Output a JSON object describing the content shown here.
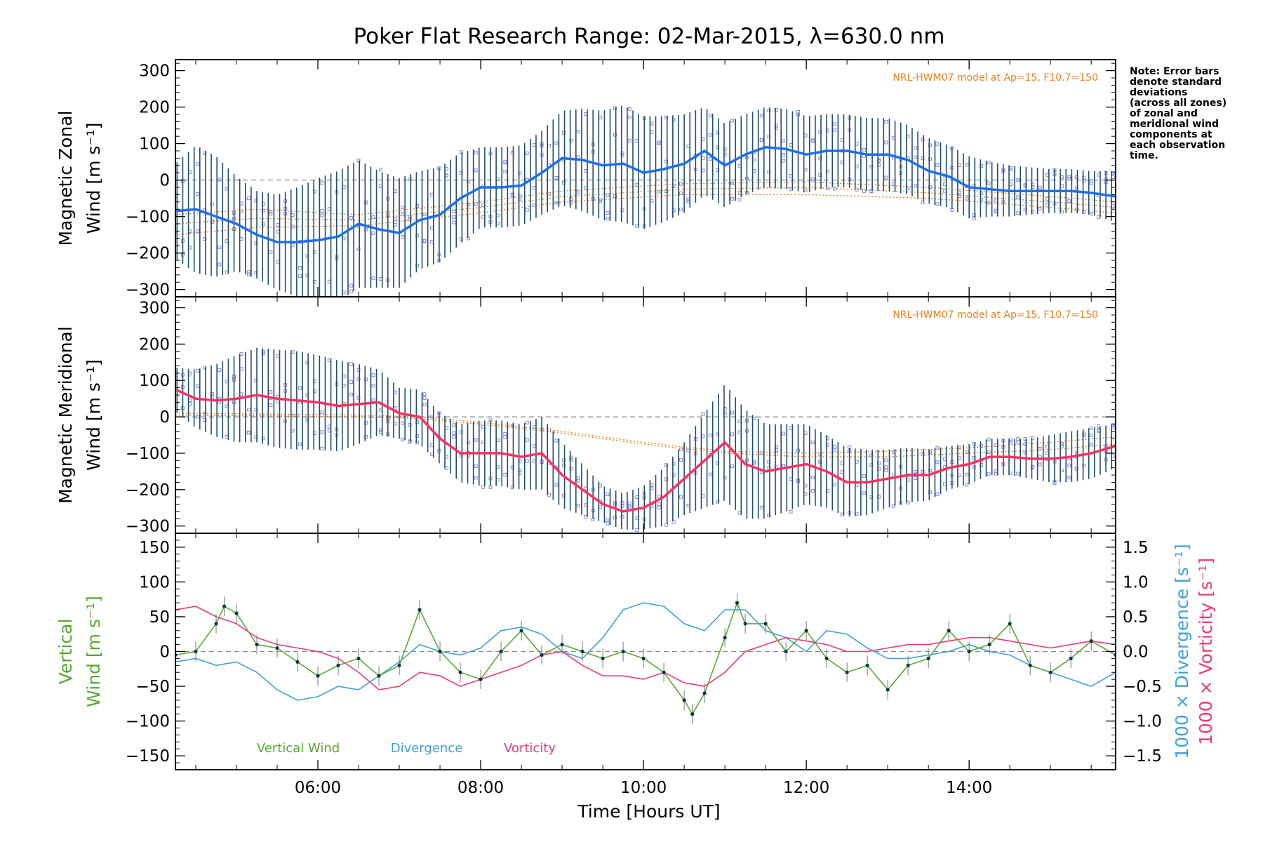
{
  "title": "Poker Flat Research Range: 02-Mar-2015, λ=630.0 nm",
  "note_lines": [
    "Note: Error bars",
    "denote standard",
    "deviations",
    "(across all zones)",
    "of zonal and",
    "meridional wind",
    "components at",
    "each observation",
    "time."
  ],
  "model_note": "NRL-HWM07 model at Ap=15, F10.7=150",
  "x_axis": {
    "label": "Time [Hours UT]",
    "range": [
      4.25,
      15.8
    ],
    "ticks": [
      6,
      8,
      10,
      12,
      14
    ],
    "tick_labels": [
      "06:00",
      "08:00",
      "10:00",
      "12:00",
      "14:00"
    ]
  },
  "colors": {
    "zonal_mean": "#1e6fe8",
    "meridional_mean": "#ff3060",
    "error_bar": "#1f4e6e",
    "model": "#f08020",
    "vertical": "#5aa832",
    "vertical_points": "#0a3a48",
    "divergence": "#3ea2d6",
    "vorticity": "#f03878",
    "zone_points": "#8a8ad8",
    "zero_line": "#888888"
  },
  "chart_data": [
    {
      "type": "line",
      "panel": "zonal",
      "ylabel_lines": [
        "Magnetic Zonal",
        "Wind [m s⁻¹]"
      ],
      "ylim": [
        -320,
        330
      ],
      "yticks": [
        -300,
        -200,
        -100,
        0,
        100,
        200,
        300
      ],
      "ytick_labels": [
        "−300",
        "−200",
        "−100",
        "0",
        "100",
        "200",
        "300"
      ],
      "grid": false,
      "series": [
        {
          "role": "mean",
          "x": [
            4.25,
            4.5,
            4.75,
            5.0,
            5.25,
            5.5,
            5.75,
            6.0,
            6.25,
            6.5,
            6.75,
            7.0,
            7.25,
            7.5,
            7.75,
            8.0,
            8.25,
            8.5,
            8.75,
            9.0,
            9.25,
            9.5,
            9.75,
            10.0,
            10.25,
            10.5,
            10.75,
            11.0,
            11.25,
            11.5,
            11.75,
            12.0,
            12.25,
            12.5,
            12.75,
            13.0,
            13.25,
            13.5,
            13.75,
            14.0,
            14.25,
            14.5,
            14.75,
            15.0,
            15.25,
            15.5,
            15.8
          ],
          "y": [
            -85,
            -80,
            -100,
            -120,
            -150,
            -170,
            -170,
            -165,
            -155,
            -120,
            -135,
            -145,
            -110,
            -95,
            -50,
            -20,
            -20,
            -15,
            20,
            60,
            55,
            40,
            45,
            20,
            30,
            45,
            80,
            40,
            70,
            90,
            85,
            70,
            80,
            80,
            70,
            70,
            55,
            25,
            10,
            -20,
            -25,
            -30,
            -30,
            -30,
            -30,
            -35,
            -45
          ]
        }
      ],
      "error_bars": {
        "x": [
          4.25,
          4.5,
          4.75,
          5.0,
          5.25,
          5.5,
          5.75,
          6.0,
          6.25,
          6.5,
          6.75,
          7.0,
          7.25,
          7.5,
          7.75,
          8.0,
          8.25,
          8.5,
          8.75,
          9.0,
          9.25,
          9.5,
          9.75,
          10.0,
          10.25,
          10.5,
          10.75,
          11.0,
          11.25,
          11.5,
          11.75,
          12.0,
          12.25,
          12.5,
          12.75,
          13.0,
          13.25,
          13.5,
          13.75,
          14.0,
          14.25,
          14.5,
          14.75,
          15.0,
          15.25,
          15.5,
          15.8
        ],
        "sd": [
          130,
          175,
          165,
          130,
          120,
          130,
          150,
          170,
          180,
          175,
          160,
          150,
          135,
          130,
          125,
          110,
          110,
          110,
          115,
          130,
          140,
          150,
          160,
          155,
          145,
          135,
          120,
          115,
          110,
          110,
          110,
          105,
          100,
          100,
          100,
          100,
          95,
          90,
          85,
          85,
          75,
          70,
          65,
          60,
          60,
          60,
          70
        ]
      },
      "model_lines": [
        {
          "x": [
            4.25,
            5.25,
            6.5,
            8.0,
            9.0,
            10.5,
            12.0,
            13.5,
            15.0,
            15.8
          ],
          "y": [
            -95,
            -80,
            -95,
            -60,
            -30,
            -10,
            -5,
            -20,
            -45,
            -60
          ]
        },
        {
          "x": [
            4.25,
            5.25,
            6.5,
            8.0,
            9.0,
            10.5,
            12.0,
            13.5,
            15.0,
            15.8
          ],
          "y": [
            -120,
            -105,
            -110,
            -75,
            -45,
            -25,
            -20,
            -35,
            -60,
            -75
          ]
        },
        {
          "x": [
            4.25,
            5.25,
            6.5,
            8.0,
            9.0,
            10.5,
            12.0,
            13.5,
            15.0,
            15.8
          ],
          "y": [
            -150,
            -130,
            -125,
            -90,
            -60,
            -40,
            -40,
            -50,
            -75,
            -90
          ]
        }
      ]
    },
    {
      "type": "line",
      "panel": "meridional",
      "ylabel_lines": [
        "Magnetic Meridional",
        "Wind [m s⁻¹]"
      ],
      "ylim": [
        -320,
        330
      ],
      "yticks": [
        -300,
        -200,
        -100,
        0,
        100,
        200,
        300
      ],
      "ytick_labels": [
        "−300",
        "−200",
        "−100",
        "0",
        "100",
        "200",
        "300"
      ],
      "grid": false,
      "series": [
        {
          "role": "mean",
          "x": [
            4.25,
            4.5,
            4.75,
            5.0,
            5.25,
            5.5,
            5.75,
            6.0,
            6.25,
            6.5,
            6.75,
            7.0,
            7.25,
            7.5,
            7.75,
            8.0,
            8.25,
            8.5,
            8.75,
            9.0,
            9.25,
            9.5,
            9.75,
            10.0,
            10.25,
            10.5,
            10.75,
            11.0,
            11.25,
            11.5,
            11.75,
            12.0,
            12.25,
            12.5,
            12.75,
            13.0,
            13.25,
            13.5,
            13.75,
            14.0,
            14.25,
            14.5,
            14.75,
            15.0,
            15.25,
            15.5,
            15.8
          ],
          "y": [
            75,
            50,
            45,
            50,
            60,
            50,
            45,
            40,
            30,
            35,
            40,
            10,
            0,
            -60,
            -100,
            -100,
            -100,
            -110,
            -100,
            -160,
            -200,
            -240,
            -260,
            -250,
            -220,
            -170,
            -120,
            -70,
            -130,
            -150,
            -140,
            -130,
            -150,
            -180,
            -180,
            -170,
            -160,
            -160,
            -140,
            -130,
            -110,
            -110,
            -115,
            -115,
            -110,
            -100,
            -80
          ]
        }
      ],
      "error_bars": {
        "x": [
          4.25,
          4.5,
          4.75,
          5.0,
          5.25,
          5.5,
          5.75,
          6.0,
          6.25,
          6.5,
          6.75,
          7.0,
          7.25,
          7.5,
          7.75,
          8.0,
          8.25,
          8.5,
          8.75,
          9.0,
          9.25,
          9.5,
          9.75,
          10.0,
          10.25,
          10.5,
          10.75,
          11.0,
          11.25,
          11.5,
          11.75,
          12.0,
          12.25,
          12.5,
          12.75,
          13.0,
          13.25,
          13.5,
          13.75,
          14.0,
          14.25,
          14.5,
          14.75,
          15.0,
          15.25,
          15.5,
          15.8
        ],
        "sd": [
          60,
          80,
          100,
          120,
          130,
          135,
          135,
          130,
          125,
          110,
          90,
          70,
          75,
          70,
          80,
          90,
          90,
          90,
          100,
          90,
          70,
          50,
          50,
          60,
          80,
          100,
          130,
          160,
          150,
          130,
          120,
          110,
          100,
          95,
          90,
          80,
          75,
          70,
          60,
          55,
          50,
          50,
          55,
          65,
          70,
          70,
          60
        ]
      },
      "model_lines": [
        {
          "x": [
            4.25,
            6.5,
            7.25,
            8.0,
            9.0,
            10.0,
            11.0,
            12.0,
            13.0,
            14.0,
            15.0,
            15.8
          ],
          "y": [
            10,
            5,
            0,
            -15,
            -40,
            -70,
            -95,
            -100,
            -95,
            -85,
            -70,
            -55
          ]
        },
        {
          "x": [
            4.25,
            6.5,
            7.25,
            8.0,
            9.0,
            10.0,
            11.0,
            12.0,
            13.0,
            14.0,
            15.0,
            15.8
          ],
          "y": [
            5,
            0,
            -5,
            -20,
            -45,
            -75,
            -100,
            -110,
            -110,
            -100,
            -90,
            -75
          ]
        }
      ]
    },
    {
      "type": "line",
      "panel": "vertical",
      "ylabel_lines": [
        "Vertical",
        "Wind [m s⁻¹]"
      ],
      "ylim": [
        -170,
        170
      ],
      "yticks": [
        -150,
        -100,
        -50,
        0,
        50,
        100,
        150
      ],
      "ytick_labels": [
        "−150",
        "−100",
        "−50",
        "0",
        "50",
        "100",
        "150"
      ],
      "y2label_divergence": "1000 × Divergence [s⁻¹]",
      "y2label_vorticity": "1000 × Vorticity [s⁻¹]",
      "y2lim": [
        -1.7,
        1.7
      ],
      "y2ticks": [
        -1.5,
        -1.0,
        -0.5,
        0.0,
        0.5,
        1.0,
        1.5
      ],
      "y2tick_labels": [
        "−1.5",
        "−1.0",
        "−0.5",
        "0.0",
        "0.5",
        "1.0",
        "1.5"
      ],
      "grid": false,
      "legend": {
        "placement": "bottom-left",
        "entries": [
          "Vertical Wind",
          "Divergence",
          "Vorticity"
        ]
      },
      "series": [
        {
          "name": "Vertical Wind",
          "axis": "left",
          "x": [
            4.25,
            4.5,
            4.75,
            4.85,
            5.0,
            5.25,
            5.5,
            5.75,
            6.0,
            6.25,
            6.5,
            6.75,
            7.0,
            7.25,
            7.5,
            7.75,
            8.0,
            8.25,
            8.5,
            8.75,
            9.0,
            9.25,
            9.5,
            9.75,
            10.0,
            10.25,
            10.5,
            10.6,
            10.75,
            11.0,
            11.15,
            11.25,
            11.5,
            11.75,
            12.0,
            12.25,
            12.5,
            12.75,
            13.0,
            13.25,
            13.5,
            13.75,
            14.0,
            14.25,
            14.5,
            14.75,
            15.0,
            15.25,
            15.5,
            15.8
          ],
          "y": [
            -5,
            0,
            40,
            65,
            55,
            10,
            5,
            -15,
            -35,
            -20,
            -10,
            -35,
            -20,
            60,
            0,
            -30,
            -40,
            0,
            30,
            -5,
            10,
            0,
            -10,
            0,
            -10,
            -30,
            -70,
            -90,
            -60,
            20,
            70,
            40,
            40,
            0,
            30,
            -10,
            -30,
            -20,
            -55,
            -20,
            -10,
            30,
            0,
            10,
            40,
            -20,
            -30,
            -10,
            15,
            -5
          ]
        },
        {
          "name": "Divergence",
          "axis": "right",
          "x": [
            4.25,
            4.5,
            4.75,
            5.0,
            5.25,
            5.5,
            5.75,
            6.0,
            6.25,
            6.5,
            6.75,
            7.0,
            7.25,
            7.5,
            7.75,
            8.0,
            8.25,
            8.5,
            8.75,
            9.0,
            9.25,
            9.5,
            9.75,
            10.0,
            10.25,
            10.5,
            10.75,
            11.0,
            11.25,
            11.5,
            11.75,
            12.0,
            12.25,
            12.5,
            12.75,
            13.0,
            13.25,
            13.5,
            13.75,
            14.0,
            14.25,
            14.5,
            14.75,
            15.0,
            15.25,
            15.5,
            15.8
          ],
          "y": [
            -0.15,
            -0.1,
            -0.2,
            -0.15,
            -0.3,
            -0.55,
            -0.7,
            -0.65,
            -0.5,
            -0.55,
            -0.35,
            -0.15,
            0.1,
            0.0,
            -0.05,
            0.05,
            0.3,
            0.35,
            0.25,
            0.0,
            -0.1,
            0.2,
            0.6,
            0.7,
            0.65,
            0.4,
            0.3,
            0.6,
            0.6,
            0.3,
            0.2,
            0.0,
            0.3,
            0.25,
            0.05,
            -0.1,
            -0.1,
            -0.05,
            0.0,
            0.1,
            0.0,
            -0.05,
            -0.2,
            -0.3,
            -0.4,
            -0.5,
            -0.3
          ]
        },
        {
          "name": "Vorticity",
          "axis": "right",
          "x": [
            4.25,
            4.5,
            4.75,
            5.0,
            5.25,
            5.5,
            5.75,
            6.0,
            6.25,
            6.5,
            6.75,
            7.0,
            7.25,
            7.5,
            7.75,
            8.0,
            8.25,
            8.5,
            8.75,
            9.0,
            9.25,
            9.5,
            9.75,
            10.0,
            10.25,
            10.5,
            10.75,
            11.0,
            11.25,
            11.5,
            11.75,
            12.0,
            12.25,
            12.5,
            12.75,
            13.0,
            13.25,
            13.5,
            13.75,
            14.0,
            14.25,
            14.5,
            14.75,
            15.0,
            15.25,
            15.5,
            15.8
          ],
          "y": [
            0.6,
            0.65,
            0.5,
            0.4,
            0.2,
            0.1,
            0.05,
            0.0,
            -0.1,
            -0.3,
            -0.55,
            -0.5,
            -0.3,
            -0.35,
            -0.5,
            -0.4,
            -0.3,
            -0.2,
            -0.05,
            0.0,
            -0.2,
            -0.35,
            -0.35,
            -0.4,
            -0.3,
            -0.45,
            -0.5,
            -0.3,
            0.0,
            0.1,
            0.2,
            0.15,
            0.1,
            0.0,
            0.0,
            0.05,
            0.1,
            0.1,
            0.15,
            0.2,
            0.2,
            0.15,
            0.1,
            0.05,
            0.1,
            0.15,
            0.1
          ]
        }
      ]
    }
  ]
}
